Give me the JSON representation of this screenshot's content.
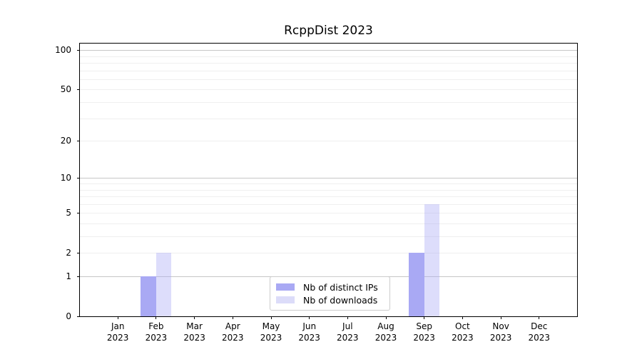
{
  "chart_data": {
    "type": "bar",
    "title": "RcppDist 2023",
    "xlabel": "",
    "ylabel": "",
    "x_tick_labels": [
      [
        "Jan",
        "2023"
      ],
      [
        "Feb",
        "2023"
      ],
      [
        "Mar",
        "2023"
      ],
      [
        "Apr",
        "2023"
      ],
      [
        "May",
        "2023"
      ],
      [
        "Jun",
        "2023"
      ],
      [
        "Jul",
        "2023"
      ],
      [
        "Aug",
        "2023"
      ],
      [
        "Sep",
        "2023"
      ],
      [
        "Oct",
        "2023"
      ],
      [
        "Nov",
        "2023"
      ],
      [
        "Dec",
        "2023"
      ]
    ],
    "series": [
      {
        "name": "Nb of distinct IPs",
        "color": "#a9a9f4",
        "bar_fill": "#a9a9f4",
        "values": [
          0,
          1,
          0,
          0,
          0,
          0,
          0,
          0,
          2,
          0,
          0,
          0
        ]
      },
      {
        "name": "Nb of downloads",
        "color": "#dcdcf9",
        "bar_fill": "rgba(169,169,244,0.40)",
        "values": [
          0,
          2,
          0,
          0,
          0,
          0,
          0,
          0,
          6,
          0,
          0,
          0
        ]
      }
    ],
    "y_scale": "log1p",
    "y_ticks": [
      0,
      1,
      2,
      5,
      10,
      20,
      50,
      100
    ],
    "ylim": [
      0,
      112
    ],
    "grid": {
      "major": [
        1,
        10,
        100
      ],
      "minor": [
        2,
        3,
        4,
        5,
        6,
        7,
        8,
        9,
        20,
        30,
        40,
        50,
        60,
        70,
        80,
        90
      ]
    },
    "legend_position": "lower center"
  }
}
